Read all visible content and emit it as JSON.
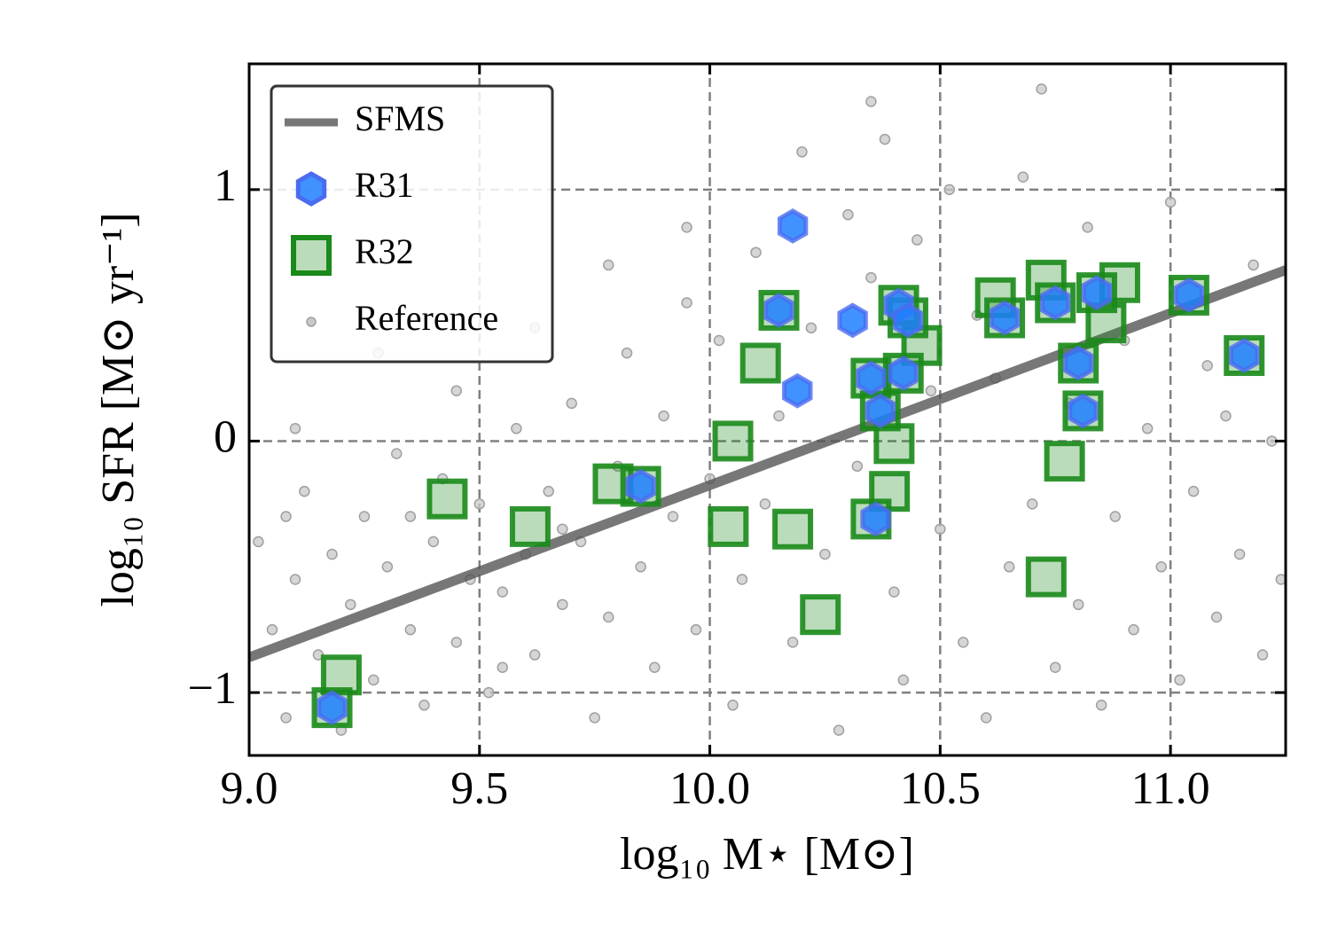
{
  "chart_data": {
    "type": "scatter",
    "x_label": "log₁₀ M⋆ [M⊙]",
    "y_label": "log₁₀ SFR [M⊙ yr⁻¹]",
    "xlim": [
      9.0,
      11.25
    ],
    "ylim": [
      -1.25,
      1.5
    ],
    "xticks": [
      {
        "value": 9.0,
        "label": "9.0"
      },
      9.5,
      {
        "value": 10.0,
        "label": "10.0"
      },
      10.5,
      {
        "value": 11.0,
        "label": "11.0"
      }
    ],
    "yticks": [
      {
        "value": -1,
        "label": "−1"
      },
      0,
      1
    ],
    "grid": true,
    "legend": "upper left",
    "series": [
      {
        "name": "SFMS",
        "marker": "line",
        "color": "#555555",
        "x": [
          9.0,
          11.25
        ],
        "values": [
          -0.86,
          0.68
        ]
      },
      {
        "name": "R31",
        "marker": "hexagon",
        "color": "#1e7fff",
        "x": [
          9.18,
          9.85,
          10.18,
          10.15,
          10.19,
          10.31,
          10.41,
          10.43,
          10.35,
          10.42,
          10.37,
          10.36,
          10.64,
          10.75,
          10.84,
          10.8,
          10.81,
          11.04,
          11.16
        ],
        "values": [
          -1.06,
          -0.18,
          0.855,
          0.52,
          0.2,
          0.48,
          0.54,
          0.48,
          0.25,
          0.27,
          0.12,
          -0.31,
          0.49,
          0.55,
          0.59,
          0.31,
          0.12,
          0.58,
          0.34
        ]
      },
      {
        "name": "R32",
        "marker": "square",
        "color": "#1a8a1a",
        "x": [
          9.2,
          9.18,
          9.43,
          9.61,
          9.79,
          9.85,
          10.05,
          10.04,
          10.18,
          10.11,
          10.15,
          10.24,
          10.35,
          10.35,
          10.41,
          10.43,
          10.42,
          10.37,
          10.46,
          10.4,
          10.39,
          10.62,
          10.64,
          10.73,
          10.75,
          10.84,
          10.89,
          10.86,
          10.8,
          10.81,
          10.77,
          10.73,
          11.04,
          11.16
        ],
        "values": [
          -0.93,
          -1.06,
          -0.23,
          -0.34,
          -0.17,
          -0.18,
          0.0,
          -0.34,
          -0.35,
          0.31,
          0.52,
          -0.69,
          0.25,
          -0.31,
          0.54,
          0.49,
          0.27,
          0.12,
          0.38,
          -0.01,
          -0.2,
          0.57,
          0.49,
          0.64,
          0.55,
          0.59,
          0.63,
          0.47,
          0.31,
          0.12,
          -0.08,
          -0.54,
          0.58,
          0.34
        ]
      },
      {
        "name": "Reference",
        "marker": "circle",
        "color": "#c8c8c8",
        "x": [
          9.02,
          9.05,
          9.08,
          9.1,
          9.12,
          9.15,
          9.18,
          9.2,
          9.22,
          9.25,
          9.27,
          9.3,
          9.32,
          9.35,
          9.38,
          9.4,
          9.42,
          9.45,
          9.48,
          9.5,
          9.52,
          9.55,
          9.58,
          9.6,
          9.62,
          9.65,
          9.68,
          9.7,
          9.72,
          9.75,
          9.78,
          9.8,
          9.82,
          9.85,
          9.88,
          9.9,
          9.92,
          9.95,
          9.97,
          10.0,
          10.02,
          10.05,
          10.07,
          10.1,
          10.12,
          10.15,
          10.18,
          10.2,
          10.22,
          10.25,
          10.28,
          10.3,
          10.32,
          10.35,
          10.38,
          10.4,
          10.42,
          10.45,
          10.48,
          10.5,
          10.52,
          10.55,
          10.58,
          10.6,
          10.62,
          10.65,
          10.68,
          10.7,
          10.72,
          10.75,
          10.78,
          10.8,
          10.82,
          10.85,
          10.88,
          10.9,
          10.92,
          10.95,
          10.98,
          11.0,
          11.02,
          11.05,
          11.08,
          11.1,
          11.12,
          11.15,
          11.18,
          11.2,
          11.22,
          11.24,
          9.1,
          9.28,
          9.45,
          9.62,
          9.78,
          9.95,
          10.35,
          9.08,
          9.35,
          9.55,
          9.68
        ],
        "values": [
          -0.4,
          -0.75,
          -1.1,
          -0.55,
          -0.2,
          -0.85,
          -0.45,
          -1.15,
          -0.65,
          -0.3,
          -0.95,
          -0.5,
          -0.05,
          -0.75,
          -1.05,
          -0.4,
          -0.15,
          -0.8,
          -0.55,
          -0.25,
          -1.0,
          -0.6,
          0.05,
          -0.45,
          -0.85,
          -0.2,
          -0.65,
          0.15,
          -0.4,
          -1.1,
          -0.7,
          -0.1,
          0.35,
          -0.5,
          -0.9,
          0.1,
          -0.3,
          0.55,
          -0.75,
          -0.15,
          0.4,
          -1.05,
          -0.55,
          0.75,
          -0.25,
          0.1,
          -0.8,
          1.15,
          0.45,
          -0.45,
          -1.15,
          0.9,
          -0.1,
          0.65,
          1.2,
          -0.6,
          -0.95,
          0.8,
          0.2,
          -0.35,
          1.0,
          -0.8,
          0.5,
          -1.1,
          0.25,
          -0.5,
          1.05,
          -0.25,
          1.4,
          -0.9,
          0.15,
          -0.65,
          0.85,
          -1.05,
          -0.3,
          0.4,
          -0.75,
          0.05,
          -0.5,
          0.95,
          -0.95,
          -0.2,
          0.3,
          -0.7,
          0.1,
          -0.45,
          0.7,
          -0.85,
          0.0,
          -0.55,
          0.05,
          0.35,
          0.2,
          0.45,
          0.7,
          0.85,
          1.35,
          -0.3,
          -0.3,
          -0.9,
          -0.35
        ]
      }
    ]
  }
}
